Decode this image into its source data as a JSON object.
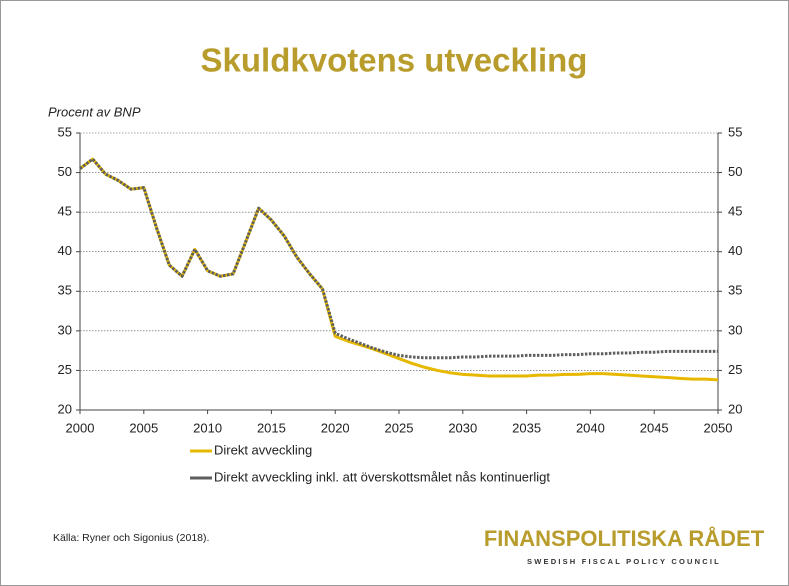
{
  "chart_data": {
    "type": "line",
    "title": "Skuldkvotens utveckling",
    "y_label": "Procent av BNP",
    "source": "Källa: Ryner och Sigonius (2018).",
    "logo_title": "FINANSPOLITISKA RÅDET",
    "logo_subtitle": "SWEDISH FISCAL POLICY COUNCIL",
    "x": [
      2000,
      2001,
      2002,
      2003,
      2004,
      2005,
      2006,
      2007,
      2008,
      2009,
      2010,
      2011,
      2012,
      2013,
      2014,
      2015,
      2016,
      2017,
      2018,
      2019,
      2020,
      2021,
      2022,
      2023,
      2024,
      2025,
      2026,
      2027,
      2028,
      2029,
      2030,
      2031,
      2032,
      2033,
      2034,
      2035,
      2036,
      2037,
      2038,
      2039,
      2040,
      2041,
      2042,
      2043,
      2044,
      2045,
      2046,
      2047,
      2048,
      2049,
      2050
    ],
    "series": [
      {
        "name": "Direkt avveckling",
        "color": "#e6b800",
        "values": [
          50.5,
          51.7,
          49.8,
          49.0,
          47.9,
          48.1,
          43.0,
          38.3,
          36.9,
          40.3,
          37.6,
          36.9,
          37.2,
          41.3,
          45.5,
          44.0,
          42.0,
          39.3,
          37.2,
          35.3,
          29.3,
          28.7,
          28.2,
          27.7,
          27.1,
          26.5,
          25.9,
          25.4,
          25.0,
          24.7,
          24.5,
          24.4,
          24.3,
          24.3,
          24.3,
          24.3,
          24.4,
          24.4,
          24.5,
          24.5,
          24.6,
          24.6,
          24.5,
          24.4,
          24.3,
          24.2,
          24.1,
          24.0,
          23.9,
          23.9,
          23.8
        ]
      },
      {
        "name": "Direkt avveckling inkl. att överskottsmålet nås kontinuerligt",
        "color": "#5f5f5f",
        "values": [
          50.5,
          51.7,
          49.8,
          49.0,
          47.9,
          48.1,
          43.0,
          38.3,
          36.9,
          40.3,
          37.6,
          36.9,
          37.2,
          41.3,
          45.5,
          44.0,
          42.0,
          39.3,
          37.2,
          35.3,
          29.7,
          29.0,
          28.4,
          27.8,
          27.3,
          26.9,
          26.7,
          26.6,
          26.6,
          26.6,
          26.7,
          26.7,
          26.8,
          26.8,
          26.8,
          26.9,
          26.9,
          26.9,
          27.0,
          27.0,
          27.1,
          27.1,
          27.2,
          27.2,
          27.3,
          27.3,
          27.4,
          27.4,
          27.4,
          27.4,
          27.4
        ]
      }
    ],
    "xlim": [
      2000,
      2050
    ],
    "xticks": [
      2000,
      2005,
      2010,
      2015,
      2020,
      2025,
      2030,
      2035,
      2040,
      2045,
      2050
    ],
    "ylim": [
      20,
      55
    ],
    "yticks": [
      20,
      25,
      30,
      35,
      40,
      45,
      50,
      55
    ],
    "y2lim": [
      20,
      55
    ],
    "y2ticks": [
      20,
      25,
      30,
      35,
      40,
      45,
      50,
      55
    ],
    "grid": true
  }
}
